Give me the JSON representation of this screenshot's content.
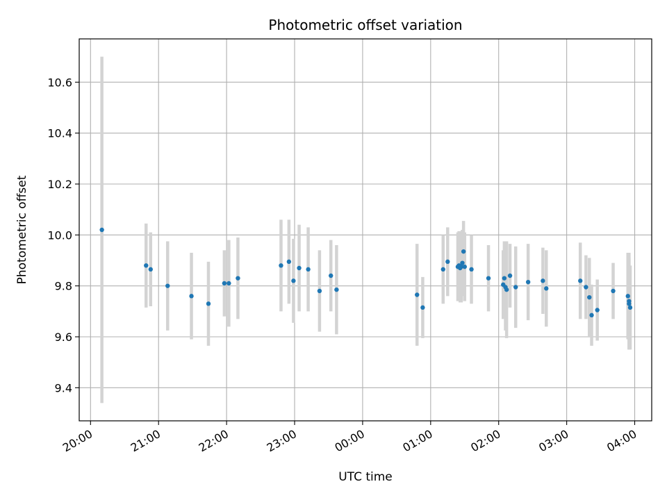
{
  "chart_data": {
    "type": "scatter",
    "title": "Photometric offset variation",
    "xlabel": "UTC time",
    "ylabel": "Photometric offset",
    "grid": true,
    "xlim": [
      "19:50",
      "04:15"
    ],
    "ylim": [
      9.27,
      10.77
    ],
    "x_ticks": [
      "20:00",
      "21:00",
      "22:00",
      "23:00",
      "00:00",
      "01:00",
      "02:00",
      "03:00",
      "04:00"
    ],
    "y_ticks": [
      "9.4",
      "9.6",
      "9.8",
      "10.0",
      "10.2",
      "10.4",
      "10.6"
    ],
    "colors": {
      "marker": "#1f77b4",
      "errorbar": "#d3d3d3",
      "grid": "#b0b0b0"
    },
    "series": [
      {
        "x": [
          "20:10",
          "20:49",
          "20:53",
          "21:08",
          "21:29",
          "21:44",
          "21:58",
          "22:02",
          "22:10",
          "22:48",
          "22:55",
          "22:59",
          "23:04",
          "23:12",
          "23:22",
          "23:32",
          "23:37",
          "00:48",
          "00:53",
          "01:11",
          "01:15",
          "01:24",
          "01:25",
          "01:26",
          "01:27",
          "01:28",
          "01:29",
          "01:30",
          "01:36",
          "01:51",
          "02:04",
          "02:05",
          "02:06",
          "02:07",
          "02:10",
          "02:15",
          "02:26",
          "02:39",
          "02:42",
          "03:12",
          "03:17",
          "03:20",
          "03:22",
          "03:27",
          "03:41",
          "03:54",
          "03:55",
          "03:55",
          "03:56"
        ],
        "y": [
          10.02,
          9.88,
          9.865,
          9.8,
          9.76,
          9.73,
          9.81,
          9.81,
          9.83,
          9.88,
          9.895,
          9.82,
          9.87,
          9.865,
          9.78,
          9.84,
          9.785,
          9.765,
          9.715,
          9.865,
          9.895,
          9.875,
          9.88,
          9.87,
          9.875,
          9.89,
          9.935,
          9.875,
          9.865,
          9.83,
          9.805,
          9.83,
          9.795,
          9.785,
          9.84,
          9.795,
          9.815,
          9.82,
          9.79,
          9.82,
          9.795,
          9.755,
          9.685,
          9.705,
          9.78,
          9.76,
          9.74,
          9.73,
          9.715
        ],
        "error": [
          0.68,
          0.165,
          0.145,
          0.175,
          0.17,
          0.165,
          0.13,
          0.17,
          0.16,
          0.18,
          0.165,
          0.165,
          0.17,
          0.165,
          0.16,
          0.14,
          0.175,
          0.2,
          0.12,
          0.135,
          0.135,
          0.135,
          0.135,
          0.135,
          0.14,
          0.13,
          0.12,
          0.135,
          0.135,
          0.13,
          0.135,
          0.145,
          0.17,
          0.19,
          0.125,
          0.16,
          0.15,
          0.13,
          0.15,
          0.15,
          0.125,
          0.155,
          0.12,
          0.12,
          0.11,
          0.17,
          0.19,
          0.18,
          0.165
        ]
      }
    ]
  }
}
